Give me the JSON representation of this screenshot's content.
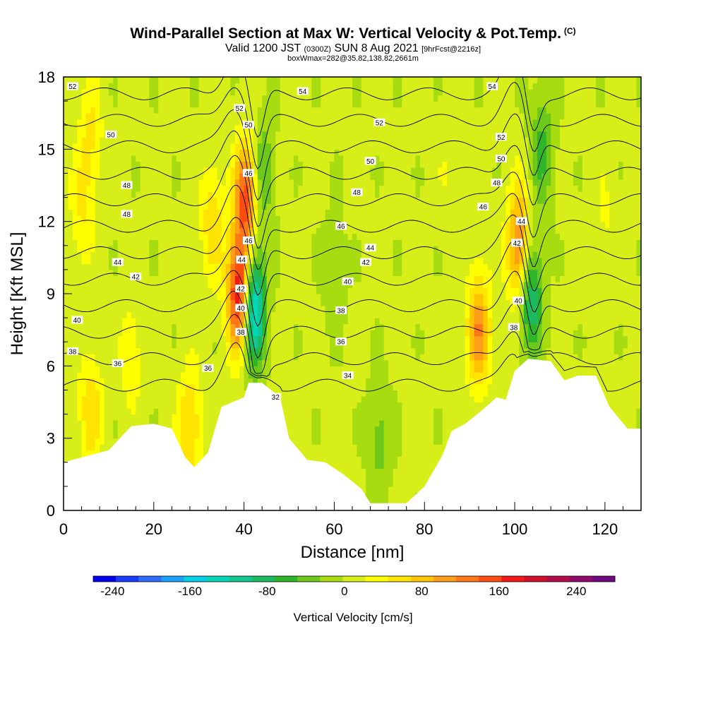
{
  "chart_data": {
    "type": "contour",
    "title": "Wind-Parallel Section at Max W: Vertical Velocity & Pot.Temp.",
    "title_mark": "(C)",
    "subtitle": {
      "valid": "Valid 1200 JST",
      "utc": "(0300Z)",
      "date": "SUN 8 Aug 2021",
      "fcst": "[9hrFcst@2216z]"
    },
    "box_info": "boxWmax=282@35.82,138.82,2661m",
    "xlabel": "Distance [nm]",
    "ylabel": "Height [Kft MSL]",
    "xlim": [
      0,
      128
    ],
    "ylim": [
      0,
      18
    ],
    "xticks": [
      "0",
      "20",
      "40",
      "60",
      "80",
      "100",
      "120"
    ],
    "yticks": [
      "0",
      "3",
      "6",
      "9",
      "12",
      "15",
      "18"
    ],
    "colorbar": {
      "label": "Vertical Velocity [cm/s]",
      "ticks": [
        "-240",
        "-160",
        "-80",
        "0",
        "80",
        "160",
        "240"
      ],
      "range": [
        -260,
        280
      ],
      "colors": [
        "#0000ee",
        "#1a3cff",
        "#2f6cff",
        "#1ca0ff",
        "#00cfe8",
        "#00d8b8",
        "#12c890",
        "#1cba60",
        "#2fb52a",
        "#6cc81a",
        "#a6dc10",
        "#d8ee18",
        "#ffff00",
        "#ffe400",
        "#ffc400",
        "#ff9e18",
        "#ff7818",
        "#ff4c10",
        "#f21818",
        "#d20f2a",
        "#b20c48",
        "#8e0a6c",
        "#700a7e"
      ]
    },
    "terrain": [
      [
        0,
        2
      ],
      [
        6,
        2.3
      ],
      [
        10,
        2.5
      ],
      [
        15,
        3.5
      ],
      [
        20,
        3.6
      ],
      [
        24,
        3.4
      ],
      [
        27,
        2.2
      ],
      [
        29,
        1.8
      ],
      [
        32,
        2.4
      ],
      [
        35,
        4.3
      ],
      [
        40,
        4.7
      ],
      [
        41,
        5.3
      ],
      [
        44,
        5.3
      ],
      [
        48,
        4.7
      ],
      [
        50,
        3
      ],
      [
        54,
        2.1
      ],
      [
        58,
        2
      ],
      [
        62,
        1.5
      ],
      [
        66,
        0.9
      ],
      [
        68,
        0.3
      ],
      [
        76,
        0.3
      ],
      [
        80,
        1
      ],
      [
        84,
        2.3
      ],
      [
        86,
        3.3
      ],
      [
        89,
        3.6
      ],
      [
        93,
        4.2
      ],
      [
        96,
        4.7
      ],
      [
        98,
        4.6
      ],
      [
        100,
        5.8
      ],
      [
        103,
        6.3
      ],
      [
        108,
        6.2
      ],
      [
        111,
        5.4
      ],
      [
        114,
        5.6
      ],
      [
        118,
        5.6
      ],
      [
        121,
        4.3
      ],
      [
        125,
        3.4
      ],
      [
        128,
        3.4
      ]
    ],
    "w_features": [
      {
        "x": 6,
        "y": 15.5,
        "w": 45
      },
      {
        "x": 4,
        "y": 12.5,
        "w": 40
      },
      {
        "x": 6,
        "y": 4.2,
        "w": 60
      },
      {
        "x": 15,
        "y": 6.5,
        "w": 35
      },
      {
        "x": 28,
        "y": 3.5,
        "w": 70
      },
      {
        "x": 33,
        "y": 12,
        "w": 60
      },
      {
        "x": 39,
        "y": 9,
        "w": 200
      },
      {
        "x": 40.5,
        "y": 13,
        "w": 150
      },
      {
        "x": 42,
        "y": 8.5,
        "w": -180
      },
      {
        "x": 44,
        "y": 14,
        "w": -60
      },
      {
        "x": 92,
        "y": 7.5,
        "w": 110
      },
      {
        "x": 101,
        "y": 11,
        "w": 130
      },
      {
        "x": 103.5,
        "y": 9,
        "w": -110
      },
      {
        "x": 106,
        "y": 15,
        "w": -60
      },
      {
        "x": 70,
        "y": 3,
        "w": -40
      },
      {
        "x": 60,
        "y": 10,
        "w": -25
      },
      {
        "x": 120,
        "y": 12,
        "w": 20
      },
      {
        "x": 85,
        "y": 14,
        "w": 15
      }
    ],
    "theta_levels": [
      32,
      34,
      36,
      38,
      40,
      42,
      44,
      46,
      48,
      50,
      52,
      54
    ],
    "theta_labels": [
      {
        "text": "52",
        "x": 2,
        "y": 17.6
      },
      {
        "text": "50",
        "x": 10.5,
        "y": 15.6
      },
      {
        "text": "48",
        "x": 14,
        "y": 13.5
      },
      {
        "text": "48",
        "x": 14,
        "y": 12.3
      },
      {
        "text": "44",
        "x": 12,
        "y": 10.3
      },
      {
        "text": "42",
        "x": 16,
        "y": 9.7
      },
      {
        "text": "40",
        "x": 3,
        "y": 7.9
      },
      {
        "text": "38",
        "x": 2,
        "y": 6.6
      },
      {
        "text": "36",
        "x": 12,
        "y": 6.1
      },
      {
        "text": "36",
        "x": 32,
        "y": 5.9
      },
      {
        "text": "52",
        "x": 39,
        "y": 16.7
      },
      {
        "text": "50",
        "x": 41,
        "y": 16
      },
      {
        "text": "54",
        "x": 53,
        "y": 17.4
      },
      {
        "text": "52",
        "x": 70,
        "y": 16.1
      },
      {
        "text": "50",
        "x": 68,
        "y": 14.5
      },
      {
        "text": "48",
        "x": 65,
        "y": 13.2
      },
      {
        "text": "46",
        "x": 61.5,
        "y": 11.8
      },
      {
        "text": "44",
        "x": 68,
        "y": 10.9
      },
      {
        "text": "42",
        "x": 67,
        "y": 10.3
      },
      {
        "text": "40",
        "x": 63,
        "y": 9.5
      },
      {
        "text": "38",
        "x": 61.5,
        "y": 8.3
      },
      {
        "text": "36",
        "x": 61.5,
        "y": 7
      },
      {
        "text": "34",
        "x": 63,
        "y": 5.6
      },
      {
        "text": "32",
        "x": 47,
        "y": 4.7
      },
      {
        "text": "54",
        "x": 95,
        "y": 17.6
      },
      {
        "text": "52",
        "x": 97,
        "y": 15.5
      },
      {
        "text": "50",
        "x": 97,
        "y": 14.6
      },
      {
        "text": "48",
        "x": 96,
        "y": 13.6
      },
      {
        "text": "46",
        "x": 93,
        "y": 12.6
      },
      {
        "text": "46",
        "x": 41,
        "y": 14
      },
      {
        "text": "46",
        "x": 41,
        "y": 11.2
      },
      {
        "text": "44",
        "x": 39.5,
        "y": 10.4
      },
      {
        "text": "42",
        "x": 39.3,
        "y": 9.2
      },
      {
        "text": "40",
        "x": 39.3,
        "y": 8.4
      },
      {
        "text": "38",
        "x": 39.3,
        "y": 7.4
      },
      {
        "text": "44",
        "x": 101.5,
        "y": 12
      },
      {
        "text": "42",
        "x": 100.5,
        "y": 11.1
      },
      {
        "text": "40",
        "x": 100.8,
        "y": 8.7
      },
      {
        "text": "38",
        "x": 99.8,
        "y": 7.6
      }
    ]
  }
}
